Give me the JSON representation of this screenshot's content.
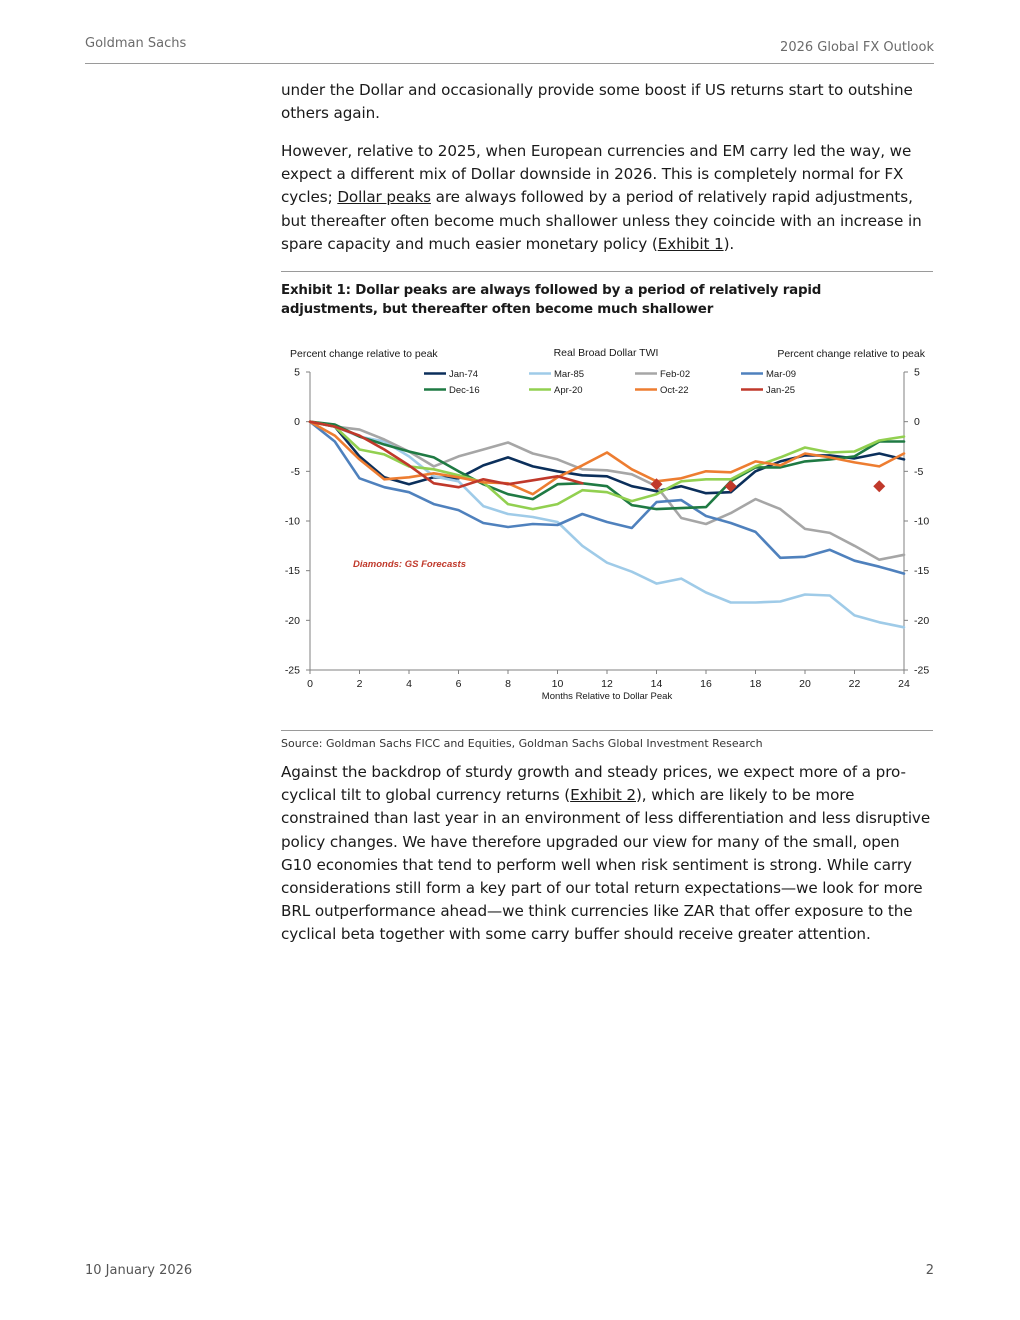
{
  "header": {
    "firm": "Goldman Sachs",
    "report": "2026 Global FX Outlook"
  },
  "body": {
    "p1": "under the Dollar and occasionally provide some boost if US returns start to outshine others again.",
    "p2_a": "However, relative to 2025, when European currencies and EM carry led the way, we expect a different mix of Dollar downside in 2026. This is completely normal for FX cycles; ",
    "p2_link1": "Dollar peaks",
    "p2_b": " are always followed by a period of relatively rapid adjustments, but thereafter often become much shallower unless they coincide with an increase in spare capacity and much easier monetary policy (",
    "p2_link2": "Exhibit 1",
    "p2_c": ").",
    "p3_a": "Against the backdrop of sturdy growth and steady prices, we expect more of a pro-cyclical tilt to global currency returns (",
    "p3_link": "Exhibit 2",
    "p3_b": "), which are likely to be more constrained than last year in an environment of less differentiation and less disruptive policy changes. We have therefore upgraded our view for many of the small, open G10 economies that tend to perform well when risk sentiment is strong. While carry considerations still form a key part of our total return expectations—we look for more BRL outperformance ahead—we think currencies like ZAR that offer exposure to the cyclical beta together with some carry buffer should receive greater attention."
  },
  "exhibit": {
    "title": "Exhibit 1: Dollar peaks are always followed by a period of relatively rapid adjustments, but thereafter often become much shallower",
    "source": "Source: Goldman Sachs FICC and Equities, Goldman Sachs Global Investment Research"
  },
  "chart_data": {
    "type": "line",
    "title": "Real Broad Dollar TWI",
    "ylabel_left": "Percent change relative to peak",
    "ylabel_right": "Percent change relative to peak",
    "xlabel": "Months Relative to Dollar Peak",
    "annotation": "Diamonds: GS Forecasts",
    "xlim": [
      0,
      24
    ],
    "ylim": [
      -25,
      5
    ],
    "x_ticks": [
      0,
      2,
      4,
      6,
      8,
      10,
      12,
      14,
      16,
      18,
      20,
      22,
      24
    ],
    "y_ticks": [
      5,
      0,
      -5,
      -10,
      -15,
      -20,
      -25
    ],
    "grid": false,
    "legend_position": "top-center",
    "series": [
      {
        "name": "Jan-74",
        "color": "#0b2f5b",
        "values": [
          0,
          -0.5,
          -3.5,
          -5.6,
          -6.3,
          -5.6,
          -5.7,
          -4.4,
          -3.6,
          -4.5,
          -5,
          -5.4,
          -5.5,
          -6.5,
          -7,
          -6.5,
          -7.2,
          -7.1,
          -5,
          -4,
          -3.4,
          -3.4,
          -3.7,
          -3.2,
          -3.8
        ]
      },
      {
        "name": "Mar-85",
        "color": "#9fcbe8",
        "values": [
          0,
          -0.5,
          -1.5,
          -2,
          -3.5,
          -5.5,
          -6,
          -8.5,
          -9.3,
          -9.6,
          -10.1,
          -12.5,
          -14.2,
          -15.1,
          -16.3,
          -15.8,
          -17.2,
          -18.2,
          -18.2,
          -18.1,
          -17.4,
          -17.5,
          -19.5,
          -20.2,
          -20.7
        ]
      },
      {
        "name": "Feb-02",
        "color": "#a6a6a6",
        "values": [
          0,
          -0.5,
          -0.8,
          -1.8,
          -3,
          -4.5,
          -3.5,
          -2.8,
          -2.1,
          -3.2,
          -3.8,
          -4.8,
          -4.9,
          -5.3,
          -6.5,
          -9.7,
          -10.3,
          -9.2,
          -7.8,
          -8.8,
          -10.8,
          -11.2,
          -12.5,
          -13.9,
          -13.4
        ]
      },
      {
        "name": "Mar-09",
        "color": "#4f81bd",
        "values": [
          0,
          -2,
          -5.7,
          -6.6,
          -7.1,
          -8.3,
          -8.9,
          -10.2,
          -10.6,
          -10.3,
          -10.4,
          -9.3,
          -10.1,
          -10.7,
          -8.1,
          -7.9,
          -9.5,
          -10.2,
          -11.1,
          -13.7,
          -13.6,
          -12.9,
          -14,
          -14.6,
          -15.3
        ]
      },
      {
        "name": "Dec-16",
        "color": "#1f7a43",
        "values": [
          0,
          -0.3,
          -1.5,
          -2.3,
          -3,
          -3.6,
          -5,
          -6.3,
          -7.3,
          -7.8,
          -6.3,
          -6.2,
          -6.5,
          -8.4,
          -8.8,
          -8.7,
          -8.6,
          -6,
          -4.6,
          -4.6,
          -4,
          -3.8,
          -3.5,
          -2,
          -2
        ]
      },
      {
        "name": "Apr-20",
        "color": "#92d050",
        "values": [
          0,
          -0.5,
          -2.8,
          -3.3,
          -4.5,
          -4.8,
          -5.4,
          -6.1,
          -8.3,
          -8.8,
          -8.3,
          -6.9,
          -7.1,
          -8,
          -7.3,
          -6,
          -5.8,
          -5.8,
          -4.5,
          -3.6,
          -2.6,
          -3.1,
          -3,
          -1.9,
          -1.5
        ]
      },
      {
        "name": "Oct-22",
        "color": "#ed7d31",
        "values": [
          0,
          -1.4,
          -3.8,
          -5.8,
          -5.6,
          -5.2,
          -5.6,
          -6.1,
          -6.2,
          -7.3,
          -5.6,
          -4.4,
          -3.1,
          -4.8,
          -6,
          -5.7,
          -5,
          -5.1,
          -4,
          -4.4,
          -3.2,
          -3.6,
          -4.1,
          -4.5,
          -3.2
        ]
      },
      {
        "name": "Jan-25",
        "color": "#c0392b",
        "values": [
          0,
          -0.5,
          -1.4,
          -2.8,
          -4.4,
          -6.2,
          -6.6,
          -5.8,
          -6.3,
          -5.9,
          -5.5,
          -6.2
        ]
      }
    ],
    "forecasts": [
      {
        "x": 14,
        "y": -6.3
      },
      {
        "x": 17,
        "y": -6.5
      },
      {
        "x": 23,
        "y": -6.5
      }
    ],
    "forecast_color": "#c0392b"
  },
  "footer": {
    "date": "10 January 2026",
    "page": "2"
  }
}
